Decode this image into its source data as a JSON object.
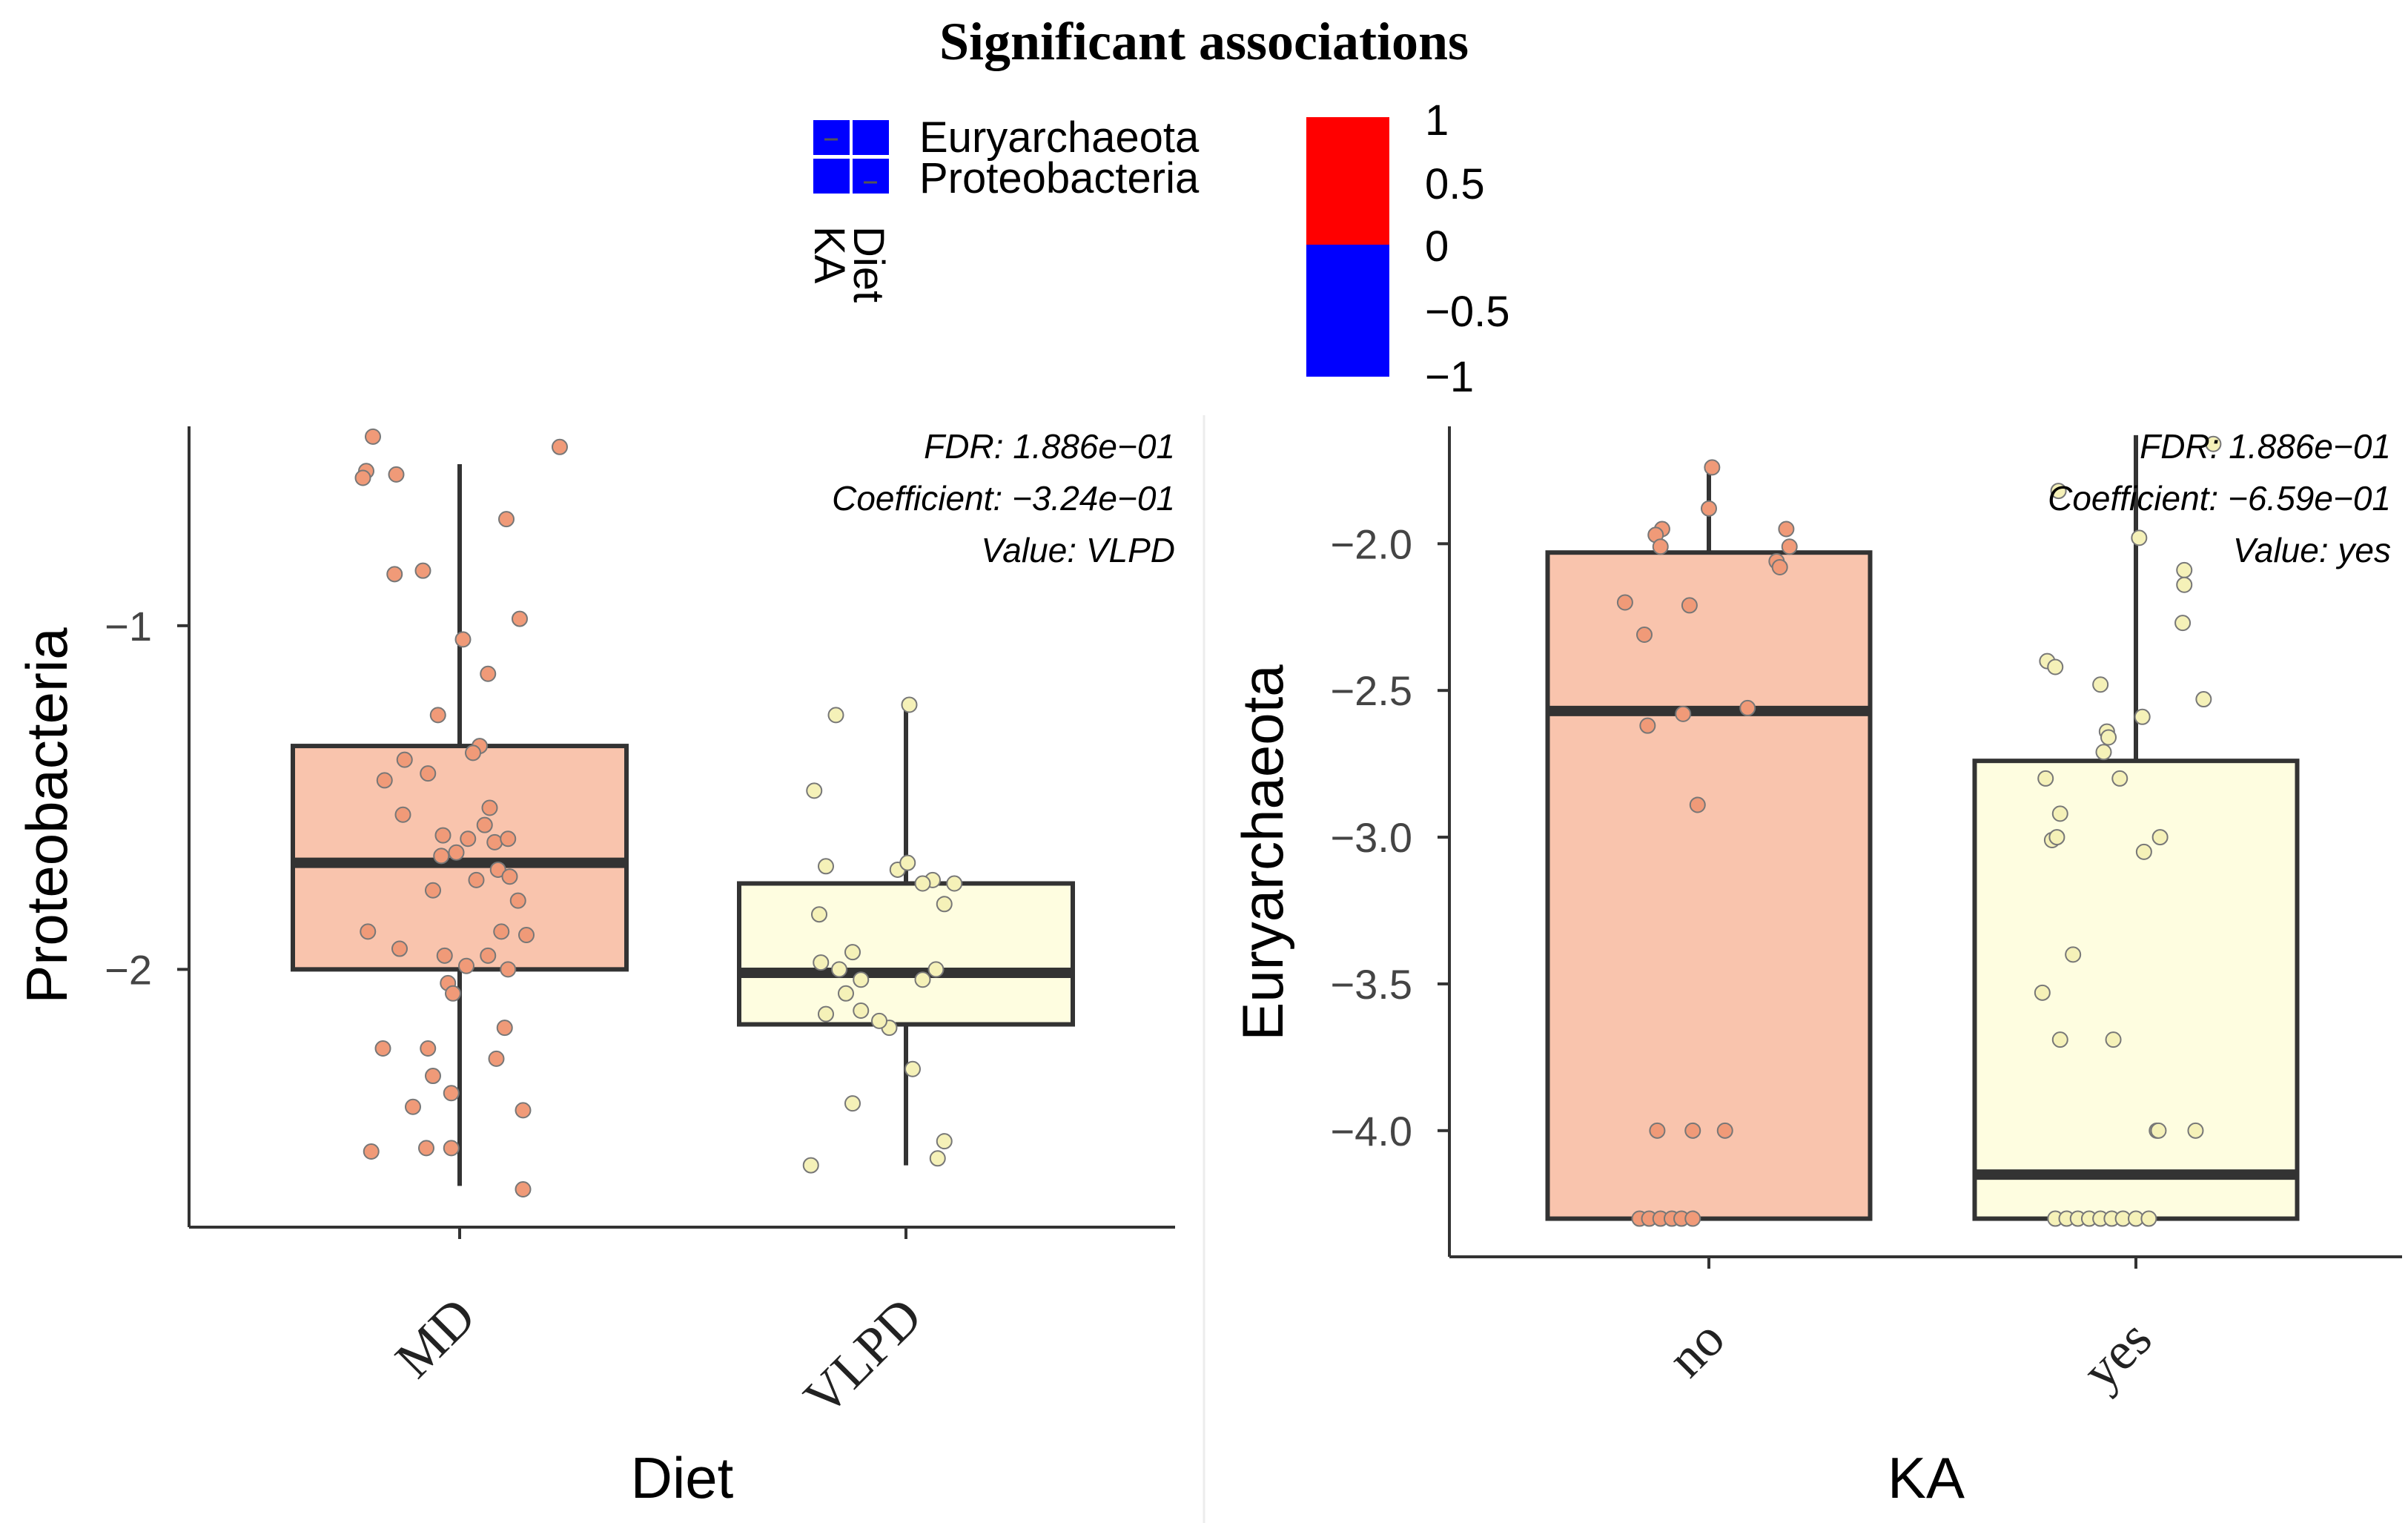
{
  "title": "Significant associations",
  "heatmap_legend": {
    "rows": [
      "Euryarchaeota",
      "Proteobacteria"
    ],
    "cols": [
      "Diet",
      "KA"
    ],
    "cells": [
      [
        -1,
        -1
      ],
      [
        -1,
        -1
      ]
    ],
    "colorbar": {
      "ticks": [
        "1",
        "0.5",
        "0",
        "−0.5",
        "−1"
      ],
      "positive_color": "#ff0000",
      "negative_color": "#0000ff"
    }
  },
  "colors": {
    "box_fill_1": "#f9c4ad",
    "box_fill_2": "#fefde0",
    "point_fill_1": "#f09a78",
    "point_fill_2": "#f5f1b8",
    "stroke": "#333333"
  },
  "chart_data": [
    {
      "type": "box",
      "name": "diet",
      "xlabel": "Diet",
      "ylabel": "Proteobacteria",
      "ylim": [
        -2.75,
        -0.42
      ],
      "yticks": [
        -1,
        -2
      ],
      "ytick_labels": [
        "−1",
        "−2"
      ],
      "categories": [
        "MD",
        "VLPD"
      ],
      "annotation": [
        "FDR: 1.886e−01",
        "Coefficient: −3.24e−01",
        "Value: VLPD"
      ],
      "boxes": [
        {
          "name": "MD",
          "whisker_low": -2.63,
          "q1": -2.0,
          "median": -1.69,
          "q3": -1.35,
          "whisker_high": -0.53
        },
        {
          "name": "VLPD",
          "whisker_low": -2.57,
          "q1": -2.16,
          "median": -2.01,
          "q3": -1.75,
          "whisker_high": -1.24
        }
      ],
      "points": [
        [
          [
            -0.52,
            -0.45
          ],
          [
            -0.56,
            -0.55
          ],
          [
            -0.58,
            -0.57
          ],
          [
            -0.38,
            -0.56
          ],
          [
            0.6,
            -0.48
          ],
          [
            0.28,
            -0.69
          ],
          [
            -0.39,
            -0.85
          ],
          [
            -0.22,
            -0.84
          ],
          [
            0.36,
            -0.98
          ],
          [
            0.02,
            -1.04
          ],
          [
            0.17,
            -1.14
          ],
          [
            -0.13,
            -1.26
          ],
          [
            0.12,
            -1.35
          ],
          [
            0.08,
            -1.37
          ],
          [
            -0.33,
            -1.39
          ],
          [
            -0.45,
            -1.45
          ],
          [
            -0.19,
            -1.43
          ],
          [
            0.18,
            -1.53
          ],
          [
            0.15,
            -1.58
          ],
          [
            -0.34,
            -1.55
          ],
          [
            -0.1,
            -1.61
          ],
          [
            0.05,
            -1.62
          ],
          [
            0.21,
            -1.63
          ],
          [
            -0.02,
            -1.66
          ],
          [
            0.29,
            -1.62
          ],
          [
            -0.11,
            -1.67
          ],
          [
            0.23,
            -1.71
          ],
          [
            0.1,
            -1.74
          ],
          [
            0.3,
            -1.73
          ],
          [
            -0.16,
            -1.77
          ],
          [
            0.35,
            -1.8
          ],
          [
            0.25,
            -1.89
          ],
          [
            -0.55,
            -1.89
          ],
          [
            0.4,
            -1.9
          ],
          [
            -0.36,
            -1.94
          ],
          [
            -0.09,
            -1.96
          ],
          [
            0.17,
            -1.96
          ],
          [
            0.04,
            -1.99
          ],
          [
            0.29,
            -2.0
          ],
          [
            -0.07,
            -2.04
          ],
          [
            -0.04,
            -2.07
          ],
          [
            0.27,
            -2.17
          ],
          [
            -0.19,
            -2.23
          ],
          [
            -0.46,
            -2.23
          ],
          [
            0.22,
            -2.26
          ],
          [
            -0.16,
            -2.31
          ],
          [
            -0.05,
            -2.36
          ],
          [
            -0.28,
            -2.4
          ],
          [
            0.38,
            -2.41
          ],
          [
            -0.2,
            -2.52
          ],
          [
            -0.05,
            -2.52
          ],
          [
            -0.53,
            -2.53
          ],
          [
            0.38,
            -2.64
          ]
        ],
        [
          [
            0.02,
            -1.23
          ],
          [
            -0.42,
            -1.26
          ],
          [
            -0.55,
            -1.48
          ],
          [
            -0.05,
            -1.71
          ],
          [
            0.01,
            -1.69
          ],
          [
            -0.48,
            -1.7
          ],
          [
            0.16,
            -1.74
          ],
          [
            0.1,
            -1.75
          ],
          [
            0.29,
            -1.75
          ],
          [
            0.23,
            -1.81
          ],
          [
            -0.52,
            -1.84
          ],
          [
            -0.51,
            -1.98
          ],
          [
            -0.32,
            -1.95
          ],
          [
            -0.4,
            -2.0
          ],
          [
            0.18,
            -2.0
          ],
          [
            0.1,
            -2.03
          ],
          [
            -0.27,
            -2.03
          ],
          [
            -0.36,
            -2.07
          ],
          [
            -0.48,
            -2.13
          ],
          [
            -0.27,
            -2.12
          ],
          [
            -0.1,
            -2.17
          ],
          [
            -0.16,
            -2.15
          ],
          [
            0.04,
            -2.29
          ],
          [
            -0.32,
            -2.39
          ],
          [
            0.23,
            -2.5
          ],
          [
            0.19,
            -2.55
          ],
          [
            -0.57,
            -2.57
          ]
        ]
      ]
    },
    {
      "type": "box",
      "name": "ka",
      "xlabel": "KA",
      "ylabel": "Euryarchaeota",
      "ylim": [
        -4.43,
        -1.6
      ],
      "yticks": [
        -2.0,
        -2.5,
        -3.0,
        -3.5,
        -4.0
      ],
      "ytick_labels": [
        "−2.0",
        "−2.5",
        "−3.0",
        "−3.5",
        "−4.0"
      ],
      "categories": [
        "no",
        "yes"
      ],
      "annotation": [
        "FDR: 1.886e−01",
        "Coefficient: −6.59e−01",
        "Value: yes"
      ],
      "boxes": [
        {
          "name": "no",
          "whisker_low": -4.3,
          "q1": -4.3,
          "median": -2.57,
          "q3": -2.03,
          "whisker_high": -1.74
        },
        {
          "name": "yes",
          "whisker_low": -4.3,
          "q1": -4.3,
          "median": -4.15,
          "q3": -2.74,
          "whisker_high": -1.63
        }
      ],
      "points": [
        [
          [
            0.02,
            -1.74
          ],
          [
            0.0,
            -1.88
          ],
          [
            -0.29,
            -1.95
          ],
          [
            -0.33,
            -1.97
          ],
          [
            0.48,
            -1.95
          ],
          [
            -0.3,
            -2.01
          ],
          [
            0.5,
            -2.01
          ],
          [
            0.42,
            -2.06
          ],
          [
            0.44,
            -2.08
          ],
          [
            -0.52,
            -2.2
          ],
          [
            -0.12,
            -2.21
          ],
          [
            -0.4,
            -2.31
          ],
          [
            0.24,
            -2.56
          ],
          [
            -0.16,
            -2.58
          ],
          [
            -0.38,
            -2.62
          ],
          [
            -0.07,
            -2.89
          ],
          [
            -0.32,
            -4.0
          ],
          [
            -0.1,
            -4.0
          ],
          [
            0.1,
            -4.0
          ],
          [
            -0.43,
            -4.3
          ],
          [
            -0.37,
            -4.3
          ],
          [
            -0.3,
            -4.3
          ],
          [
            -0.23,
            -4.3
          ],
          [
            -0.17,
            -4.3
          ],
          [
            -0.1,
            -4.3
          ]
        ],
        [
          [
            0.48,
            -1.66
          ],
          [
            -0.48,
            -1.82
          ],
          [
            0.02,
            -1.98
          ],
          [
            0.3,
            -2.09
          ],
          [
            0.3,
            -2.14
          ],
          [
            0.29,
            -2.27
          ],
          [
            -0.55,
            -2.4
          ],
          [
            -0.5,
            -2.42
          ],
          [
            -0.22,
            -2.48
          ],
          [
            0.42,
            -2.53
          ],
          [
            0.04,
            -2.59
          ],
          [
            -0.18,
            -2.64
          ],
          [
            -0.17,
            -2.66
          ],
          [
            -0.2,
            -2.71
          ],
          [
            -0.56,
            -2.8
          ],
          [
            -0.1,
            -2.8
          ],
          [
            -0.47,
            -2.92
          ],
          [
            -0.52,
            -3.01
          ],
          [
            -0.49,
            -3.0
          ],
          [
            0.15,
            -3.0
          ],
          [
            0.05,
            -3.05
          ],
          [
            -0.39,
            -3.4
          ],
          [
            -0.58,
            -3.53
          ],
          [
            -0.47,
            -3.69
          ],
          [
            -0.14,
            -3.69
          ],
          [
            0.13,
            -4.0
          ],
          [
            0.14,
            -4.0
          ],
          [
            0.37,
            -4.0
          ],
          [
            -0.5,
            -4.3
          ],
          [
            -0.43,
            -4.3
          ],
          [
            -0.36,
            -4.3
          ],
          [
            -0.29,
            -4.3
          ],
          [
            -0.22,
            -4.3
          ],
          [
            -0.15,
            -4.3
          ],
          [
            -0.08,
            -4.3
          ],
          [
            0.0,
            -4.3
          ],
          [
            0.08,
            -4.3
          ]
        ]
      ]
    }
  ]
}
